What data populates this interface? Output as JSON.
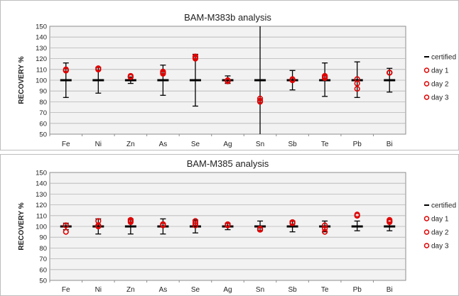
{
  "chart_data": [
    {
      "type": "scatter",
      "title": "BAM-M383b analysis",
      "xlabel": "",
      "ylabel": "RECOVERY %",
      "ylim": [
        50,
        150
      ],
      "yticks": [
        50,
        60,
        70,
        80,
        90,
        100,
        110,
        120,
        130,
        140,
        150
      ],
      "grid": true,
      "legend_position": "right",
      "categories": [
        "Fe",
        "Ni",
        "Zn",
        "As",
        "Se",
        "Ag",
        "Sn",
        "Sb",
        "Te",
        "Pb",
        "Bi"
      ],
      "certified": {
        "name": "certified",
        "values": [
          100,
          100,
          100,
          100,
          100,
          100,
          100,
          100,
          100,
          100,
          100
        ],
        "error_low": [
          84,
          88,
          97,
          86,
          76,
          97,
          50,
          91,
          85,
          84,
          89
        ],
        "error_high": [
          116,
          112,
          103,
          114,
          124,
          104,
          150,
          109,
          116,
          117,
          111
        ]
      },
      "series": [
        {
          "name": "day 1",
          "values": [
            109,
            111,
            103,
            108,
            122,
            100,
            83,
            101,
            104,
            101,
            107
          ]
        },
        {
          "name": "day 2",
          "values": [
            110,
            110,
            104,
            106,
            121,
            99,
            81,
            100,
            103,
            97,
            107
          ]
        },
        {
          "name": "day 3",
          "values": [
            109,
            110,
            103,
            107,
            120,
            99,
            80,
            100,
            102,
            92,
            107
          ]
        }
      ]
    },
    {
      "type": "scatter",
      "title": "BAM-M385  analysis",
      "xlabel": "",
      "ylabel": "RECOVERY %",
      "ylim": [
        50,
        150
      ],
      "yticks": [
        50,
        60,
        70,
        80,
        90,
        100,
        110,
        120,
        130,
        140,
        150
      ],
      "grid": true,
      "legend_position": "right",
      "categories": [
        "Fe",
        "Ni",
        "Zn",
        "As",
        "Se",
        "Ag",
        "Sn",
        "Sb",
        "Te",
        "Pb",
        "Bi"
      ],
      "certified": {
        "name": "certified",
        "values": [
          100,
          100,
          100,
          100,
          100,
          100,
          100,
          100,
          100,
          100,
          100
        ],
        "error_low": [
          97,
          93,
          93,
          93,
          94,
          97,
          96,
          95,
          95,
          96,
          96
        ],
        "error_high": [
          103,
          107,
          107,
          107,
          106,
          103,
          105,
          105,
          105,
          105,
          104
        ]
      },
      "series": [
        {
          "name": "day 1",
          "values": [
            101,
            105,
            106,
            102,
            105,
            101,
            98,
            104,
            101,
            111,
            106
          ]
        },
        {
          "name": "day 2",
          "values": [
            95,
            101,
            104,
            101,
            103,
            101,
            97,
            103,
            98,
            110,
            104
          ]
        },
        {
          "name": "day 3",
          "values": [
            101,
            100,
            105,
            102,
            101,
            102,
            97,
            103,
            95,
            110,
            105
          ]
        }
      ]
    }
  ],
  "colors": {
    "plot_background": "#f2f2f2",
    "grid": "#b4b4b4",
    "certified": "#000000",
    "markers": "#e00000",
    "frame": "#bdbdbd"
  }
}
